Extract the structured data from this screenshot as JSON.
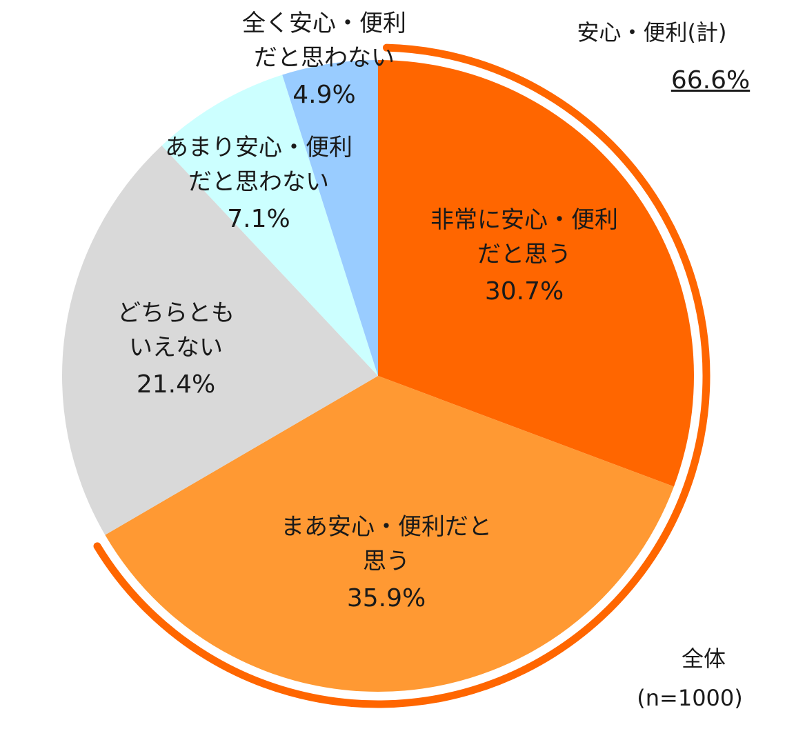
{
  "chart_data": {
    "type": "pie",
    "slices": [
      {
        "label_lines": [
          "非常に安心・便利",
          "だと思う"
        ],
        "value_text": "30.7%",
        "value": 30.7,
        "color": "#FF6600"
      },
      {
        "label_lines": [
          "まあ安心・便利だと",
          "思う"
        ],
        "value_text": "35.9%",
        "value": 35.9,
        "color": "#FF9933"
      },
      {
        "label_lines": [
          "どちらとも",
          "いえない"
        ],
        "value_text": "21.4%",
        "value": 21.4,
        "color": "#D9D9D9"
      },
      {
        "label_lines": [
          "あまり安心・便利",
          "だと思わない"
        ],
        "value_text": "7.1%",
        "value": 7.1,
        "color": "#CCFFFF"
      },
      {
        "label_lines": [
          "全く安心・便利",
          "だと思わない"
        ],
        "value_text": "4.9%",
        "value": 4.9,
        "color": "#99CCFF"
      }
    ],
    "highlight_arc_color": "#FF6600"
  },
  "summary": {
    "label": "安心・便利(計)",
    "value": "66.6%"
  },
  "base": {
    "label": "全体",
    "n": "(n=1000)"
  }
}
